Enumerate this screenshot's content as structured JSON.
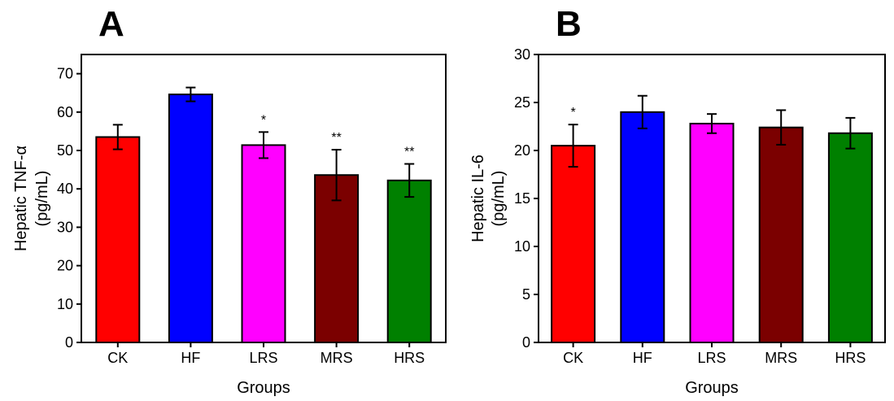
{
  "chart_data": [
    {
      "type": "bar",
      "panel_label": "A",
      "categories": [
        "CK",
        "HF",
        "LRS",
        "MRS",
        "HRS"
      ],
      "values": [
        53.5,
        64.6,
        51.4,
        43.6,
        42.2
      ],
      "errors": [
        3.2,
        1.8,
        3.4,
        6.6,
        4.3
      ],
      "significance": [
        "",
        "",
        "*",
        "**",
        "**"
      ],
      "colors": [
        "#ff0000",
        "#0000ff",
        "#ff00ff",
        "#7b0000",
        "#008000"
      ],
      "xlabel": "Groups",
      "ylabel_line1": "Hepatic TNF-α",
      "ylabel_line2": "(pg/mL)",
      "ylim": [
        0,
        75
      ],
      "yticks": [
        0,
        10,
        20,
        30,
        40,
        50,
        60,
        70
      ],
      "grid": false
    },
    {
      "type": "bar",
      "panel_label": "B",
      "categories": [
        "CK",
        "HF",
        "LRS",
        "MRS",
        "HRS"
      ],
      "values": [
        20.5,
        24.0,
        22.8,
        22.4,
        21.8
      ],
      "errors": [
        2.2,
        1.7,
        1.0,
        1.8,
        1.6
      ],
      "significance": [
        "*",
        "",
        "",
        "",
        ""
      ],
      "colors": [
        "#ff0000",
        "#0000ff",
        "#ff00ff",
        "#7b0000",
        "#008000"
      ],
      "xlabel": "Groups",
      "ylabel_line1": "Hepatic IL-6",
      "ylabel_line2": "(pg/mL)",
      "ylim": [
        0,
        30
      ],
      "yticks": [
        0,
        5,
        10,
        15,
        20,
        25,
        30
      ],
      "grid": false
    }
  ]
}
